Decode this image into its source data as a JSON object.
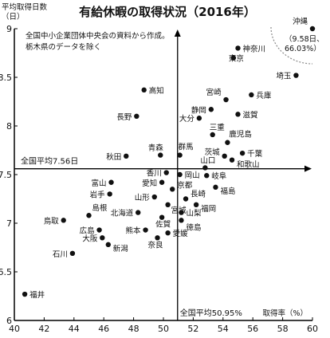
{
  "chart_data": {
    "type": "scatter",
    "title": "有給休暇の取得状況（2016年）",
    "ylabel": "平均取得日数",
    "yunit": "（日）",
    "xunit": "取得率（%）",
    "note_lines": [
      "全国中小企業団体中央会の資料から作成。",
      "栃木県のデータを除く"
    ],
    "xlim": [
      40,
      60
    ],
    "ylim": [
      6,
      9
    ],
    "xticks": [
      "40",
      "42",
      "44",
      "46",
      "48",
      "50",
      "52",
      "54",
      "56",
      "58",
      "60"
    ],
    "yticks": [
      "6",
      "6.5",
      "7",
      "7.5",
      "8",
      "8.5",
      "9"
    ],
    "avg_x": 50.95,
    "avg_y": 7.56,
    "avg_x_label": "全国平均50.95%",
    "avg_y_label": "全国平均7.56日",
    "callout": {
      "name": "沖縄",
      "detail_1": "（9.58日、",
      "detail_2": "66.03%）"
    },
    "points": [
      {
        "name": "沖縄",
        "x": 60.0,
        "y": 9.0
      },
      {
        "name": "神奈川",
        "x": 55.0,
        "y": 8.8
      },
      {
        "name": "東京",
        "x": 54.7,
        "y": 8.7
      },
      {
        "name": "埼玉",
        "x": 58.9,
        "y": 8.52
      },
      {
        "name": "高知",
        "x": 48.7,
        "y": 8.37
      },
      {
        "name": "宮崎",
        "x": 54.2,
        "y": 8.27
      },
      {
        "name": "兵庫",
        "x": 55.9,
        "y": 8.32
      },
      {
        "name": "静岡",
        "x": 53.2,
        "y": 8.17
      },
      {
        "name": "長野",
        "x": 48.2,
        "y": 8.1
      },
      {
        "name": "大分",
        "x": 52.4,
        "y": 8.08
      },
      {
        "name": "滋賀",
        "x": 55.0,
        "y": 8.12
      },
      {
        "name": "三重",
        "x": 53.3,
        "y": 7.91
      },
      {
        "name": "鹿児島",
        "x": 54.3,
        "y": 7.83
      },
      {
        "name": "茨城",
        "x": 54.1,
        "y": 7.69
      },
      {
        "name": "千葉",
        "x": 55.3,
        "y": 7.72
      },
      {
        "name": "和歌山",
        "x": 54.6,
        "y": 7.65
      },
      {
        "name": "秋田",
        "x": 47.5,
        "y": 7.69
      },
      {
        "name": "青森",
        "x": 49.8,
        "y": 7.7
      },
      {
        "name": "群馬",
        "x": 51.1,
        "y": 7.7
      },
      {
        "name": "山口",
        "x": 52.8,
        "y": 7.57
      },
      {
        "name": "香川",
        "x": 50.2,
        "y": 7.52
      },
      {
        "name": "岡山",
        "x": 51.1,
        "y": 7.5
      },
      {
        "name": "岐阜",
        "x": 52.9,
        "y": 7.49
      },
      {
        "name": "富山",
        "x": 46.5,
        "y": 7.42
      },
      {
        "name": "愛知",
        "x": 49.9,
        "y": 7.42
      },
      {
        "name": "福島",
        "x": 53.5,
        "y": 7.37
      },
      {
        "name": "京都",
        "x": 50.6,
        "y": 7.35
      },
      {
        "name": "岩手",
        "x": 46.4,
        "y": 7.3
      },
      {
        "name": "山形",
        "x": 49.4,
        "y": 7.27
      },
      {
        "name": "長崎",
        "x": 51.5,
        "y": 7.25
      },
      {
        "name": "宮城",
        "x": 50.3,
        "y": 7.19
      },
      {
        "name": "福岡",
        "x": 52.2,
        "y": 7.19
      },
      {
        "name": "島根",
        "x": 45.0,
        "y": 7.08
      },
      {
        "name": "北海道",
        "x": 48.3,
        "y": 7.11
      },
      {
        "name": "佐賀",
        "x": 49.9,
        "y": 7.06
      },
      {
        "name": "山梨",
        "x": 51.2,
        "y": 7.11
      },
      {
        "name": "鳥取",
        "x": 43.3,
        "y": 7.03
      },
      {
        "name": "徳島",
        "x": 51.2,
        "y": 7.03
      },
      {
        "name": "広島",
        "x": 45.7,
        "y": 6.93
      },
      {
        "name": "熊本",
        "x": 48.8,
        "y": 6.93
      },
      {
        "name": "愛媛",
        "x": 50.3,
        "y": 6.9
      },
      {
        "name": "大阪",
        "x": 45.9,
        "y": 6.85
      },
      {
        "name": "奈良",
        "x": 49.6,
        "y": 6.85
      },
      {
        "name": "新潟",
        "x": 46.3,
        "y": 6.78
      },
      {
        "name": "石川",
        "x": 43.9,
        "y": 6.69
      },
      {
        "name": "福井",
        "x": 40.7,
        "y": 6.27
      }
    ]
  }
}
